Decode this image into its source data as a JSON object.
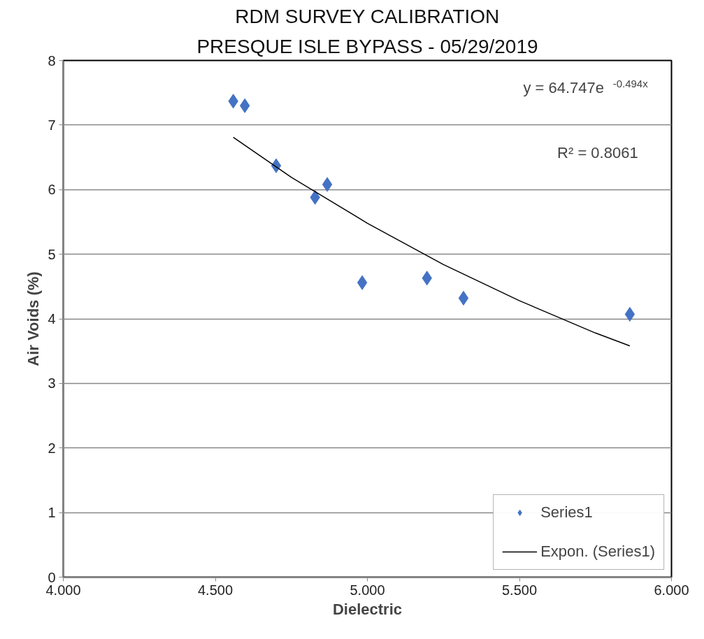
{
  "chart_data": {
    "type": "scatter",
    "title": "RDM SURVEY CALIBRATION",
    "subtitle": "PRESQUE ISLE BYPASS - 05/29/2019",
    "xlabel": "Dielectric",
    "ylabel": "Air Voids (%)",
    "series": [
      {
        "name": "Series1",
        "color": "#4472c4",
        "marker": "diamond",
        "x": [
          4.559,
          4.597,
          4.7,
          4.828,
          4.868,
          4.983,
          5.196,
          5.316,
          5.863
        ],
        "values": [
          7.37,
          7.3,
          6.37,
          5.88,
          6.08,
          4.56,
          4.63,
          4.32,
          4.07
        ]
      },
      {
        "name": "Expon. (Series1)",
        "type": "line",
        "color": "#000000",
        "line_style": "solid",
        "x": [
          4.559,
          4.75,
          5.0,
          5.25,
          5.5,
          5.75,
          5.863
        ],
        "values": [
          6.81,
          6.19,
          5.48,
          4.84,
          4.28,
          3.78,
          3.58
        ]
      }
    ],
    "xlim": [
      4,
      6
    ],
    "ylim": [
      0,
      8
    ],
    "xticks": [
      {
        "value": 4,
        "label": "4.000"
      },
      {
        "value": 4.5,
        "label": "4.500"
      },
      {
        "value": 5,
        "label": "5.000"
      },
      {
        "value": 5.5,
        "label": "5.500"
      },
      {
        "value": 6,
        "label": "6.000"
      }
    ],
    "yticks": [
      0,
      1,
      2,
      3,
      4,
      5,
      6,
      7,
      8
    ],
    "grid": "y",
    "legend": "bottom right",
    "annotations": [
      "y = 64.747e$^{-0.494x}$",
      "R² = 0.8061"
    ]
  }
}
